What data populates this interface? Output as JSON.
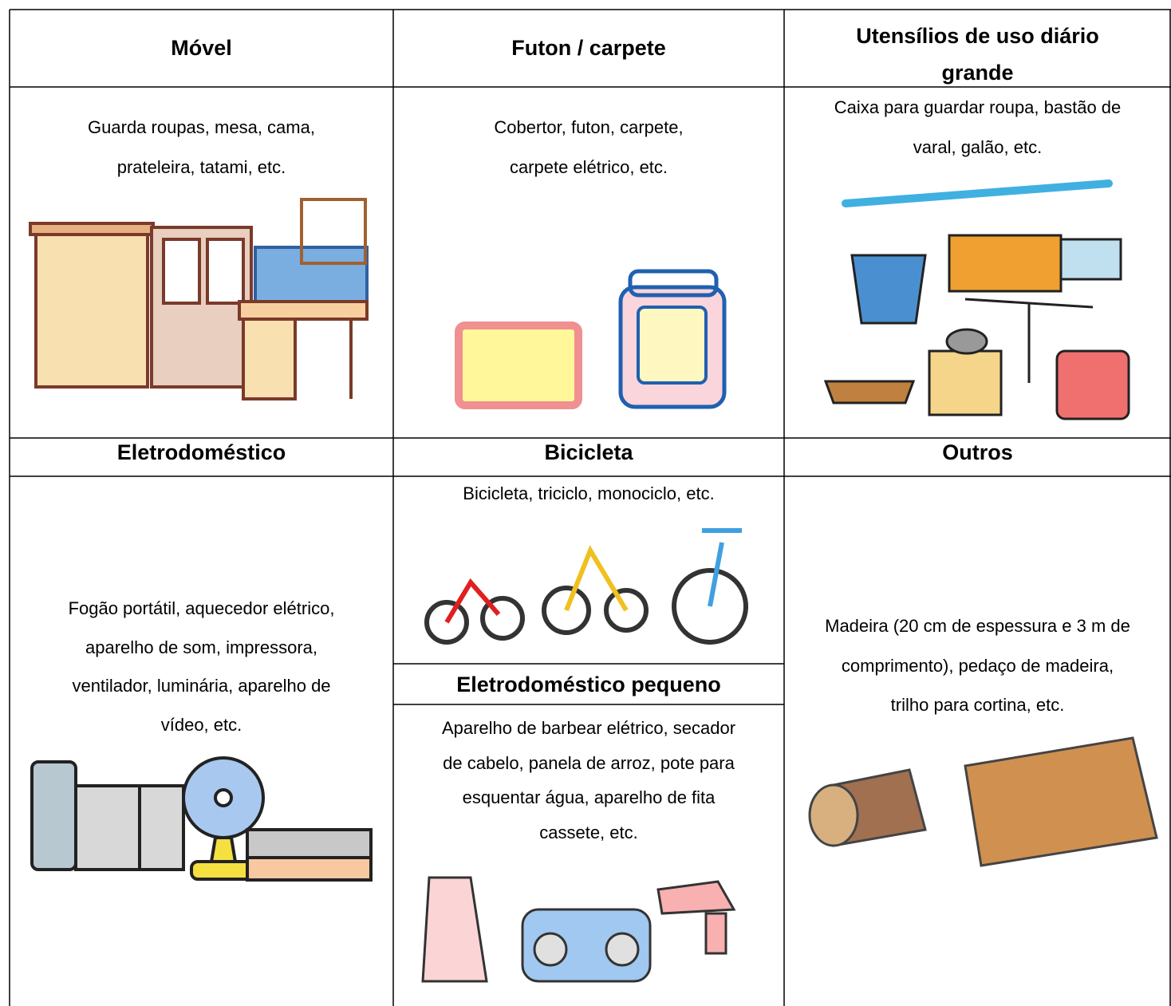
{
  "table": {
    "headers_top": [
      "Móvel",
      "Futon / carpete",
      [
        "Utensílios de uso diário",
        "grande"
      ]
    ],
    "descriptions_top": [
      [
        "Guarda roupas, mesa, cama,",
        "prateleira, tatami, etc."
      ],
      [
        "Cobertor, futon, carpete,",
        "carpete elétrico, etc."
      ],
      [
        "Caixa para guardar roupa, bastão de",
        "varal, galão, etc."
      ]
    ],
    "headers_bottom": [
      "Eletrodoméstico",
      "Bicicleta",
      "Outros"
    ],
    "descriptions_bottom": [
      [
        "Fogão portátil, aquecedor elétrico,",
        "aparelho de som, impressora,",
        "ventilador, luminária, aparelho de",
        "vídeo, etc."
      ],
      [
        "Bicicleta, triciclo, monociclo, etc."
      ],
      [
        "Madeira (20 cm de espessura e 3 m de",
        "comprimento), pedaço de madeira,",
        "trilho para cortina, etc."
      ]
    ],
    "sub_header": "Eletrodoméstico pequeno",
    "sub_description": [
      "Aparelho de barbear elétrico, secador",
      "de cabelo, panela de arroz, pote para",
      "esquentar água, aparelho de fita",
      "cassete, etc."
    ]
  }
}
